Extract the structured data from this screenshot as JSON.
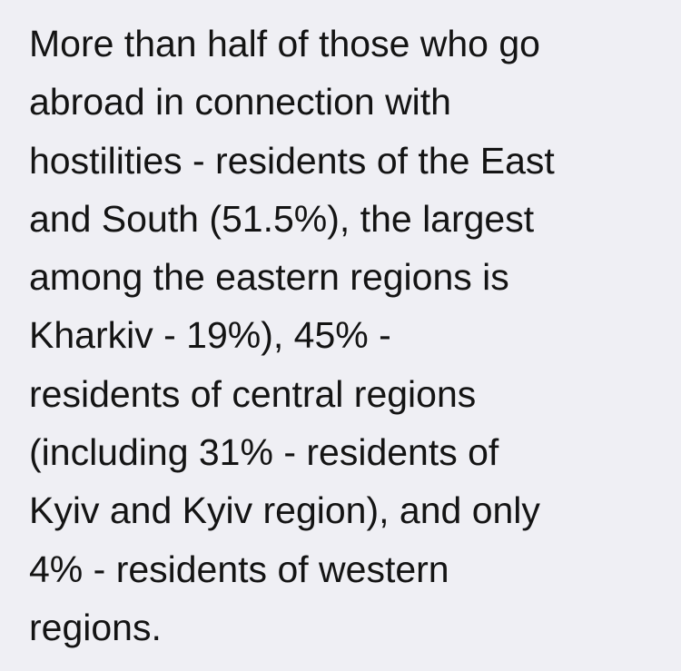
{
  "note": {
    "lines": [
      "More than half of those who go",
      "abroad in connection with",
      "hostilities - residents of the East",
      "and South (51.5%), the largest",
      "among the eastern regions is",
      "Kharkiv - 19%), 45% -",
      "residents of central regions",
      "(including 31% - residents of",
      "Kyiv and Kyiv region), and only",
      "4% - residents of western",
      "regions."
    ]
  }
}
